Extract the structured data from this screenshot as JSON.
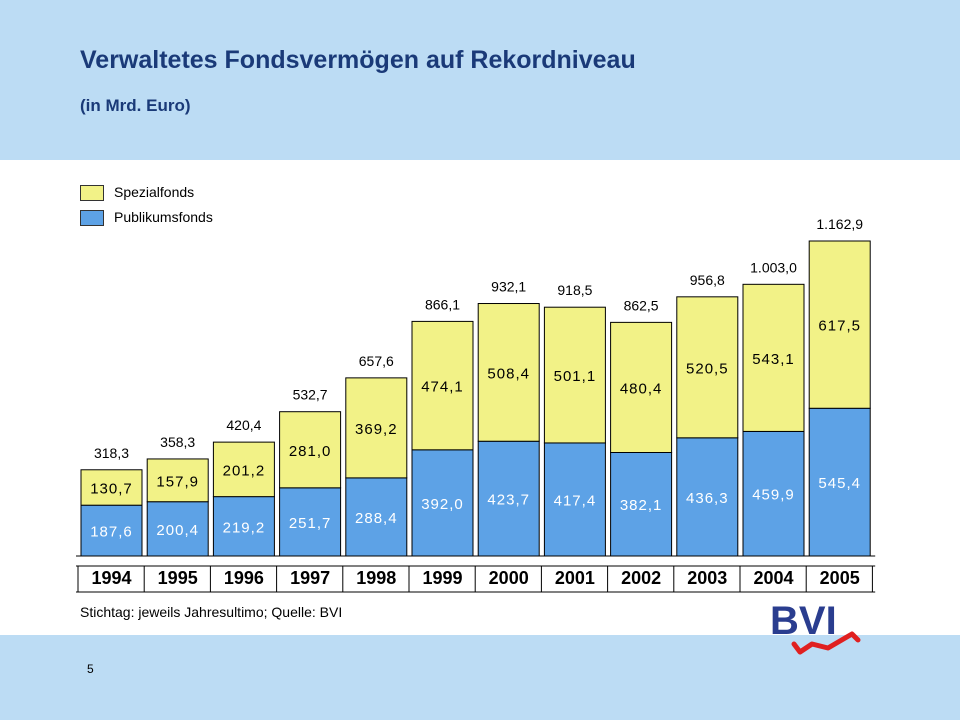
{
  "title": "Verwaltetes Fondsvermögen auf Rekordniveau",
  "subtitle": "(in Mrd. Euro)",
  "legend": {
    "spezial": "Spezialfonds",
    "publikum": "Publikumsfonds"
  },
  "source_note": "Stichtag: jeweils Jahresultimo; Quelle: BVI",
  "page_number": "5",
  "logo": {
    "text": "BVI"
  },
  "colors": {
    "header_band": "#bcdcf4",
    "title": "#1a3a78",
    "publikumsfonds": "#5da2e6",
    "spezialfonds": "#f2f287",
    "logo_blue": "#2a3d8f",
    "logo_red": "#e02020"
  },
  "chart_data": {
    "type": "bar",
    "stacked": true,
    "categories": [
      "1994",
      "1995",
      "1996",
      "1997",
      "1998",
      "1999",
      "2000",
      "2001",
      "2002",
      "2003",
      "2004",
      "2005"
    ],
    "series": [
      {
        "name": "Publikumsfonds",
        "color": "#5da2e6",
        "values": [
          187.6,
          200.4,
          219.2,
          251.7,
          288.4,
          392.0,
          423.7,
          417.4,
          382.1,
          436.3,
          459.9,
          545.4
        ],
        "labels": [
          "187,6",
          "200,4",
          "219,2",
          "251,7",
          "288,4",
          "392,0",
          "423,7",
          "417,4",
          "382,1",
          "436,3",
          "459,9",
          "545,4"
        ]
      },
      {
        "name": "Spezialfonds",
        "color": "#f2f287",
        "values": [
          130.7,
          157.9,
          201.2,
          281.0,
          369.2,
          474.1,
          508.4,
          501.1,
          480.4,
          520.5,
          543.1,
          617.5
        ],
        "labels": [
          "130,7",
          "157,9",
          "201,2",
          "281,0",
          "369,2",
          "474,1",
          "508,4",
          "501,1",
          "480,4",
          "520,5",
          "543,1",
          "617,5"
        ]
      }
    ],
    "totals": [
      318.3,
      358.3,
      420.4,
      532.7,
      657.6,
      866.1,
      932.1,
      918.5,
      862.5,
      956.8,
      1003.0,
      1162.9
    ],
    "total_labels": [
      "318,3",
      "358,3",
      "420,4",
      "532,7",
      "657,6",
      "866,1",
      "932,1",
      "918,5",
      "862,5",
      "956,8",
      "1.003,0",
      "1.162,9"
    ],
    "legend_position": "top-left",
    "grid": false
  }
}
